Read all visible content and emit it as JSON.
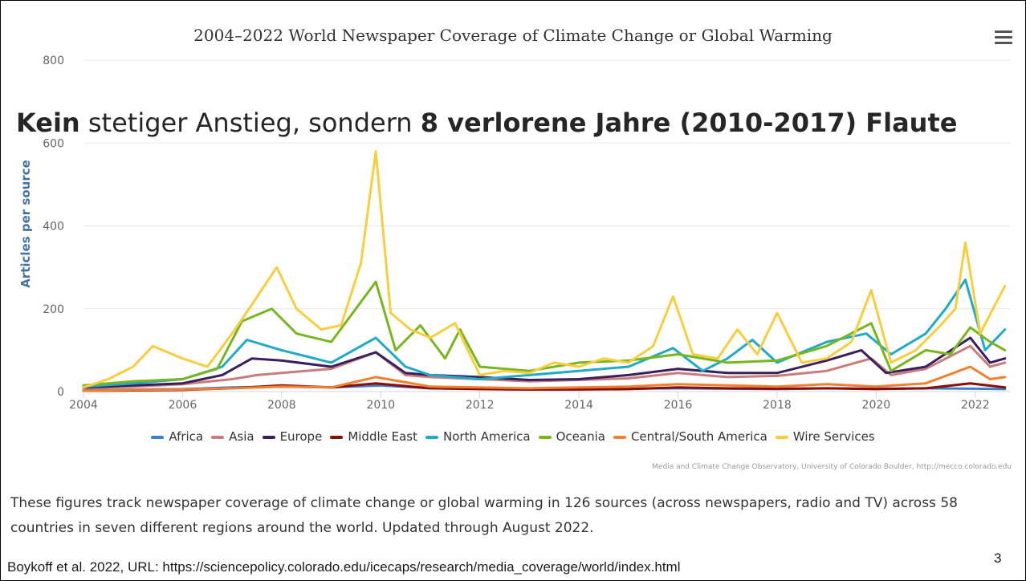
{
  "slide": {
    "heading_bold_1": "Kein",
    "heading_normal": " stetiger Anstieg, sondern ",
    "heading_bold_2": "8 verlorene Jahre (2010-2017) Flaute",
    "description": "These figures track newspaper coverage of climate change or global warming in 126 sources (across newspapers, radio and TV) across 58 countries in seven different regions around the world. Updated through August 2022.",
    "source": "Boykoff et al. 2022, URL: https://sciencepolicy.colorado.edu/icecaps/research/media_coverage/world/index.html",
    "page_number": "3"
  },
  "chart_data": {
    "type": "line",
    "title": "2004–2022 World Newspaper Coverage of Climate Change or Global Warming",
    "xlabel": "",
    "ylabel": "Articles per source",
    "xlim": [
      2004,
      2022.7
    ],
    "ylim": [
      0,
      800
    ],
    "y_ticks": [
      0,
      200,
      400,
      600,
      800
    ],
    "x_ticks": [
      2004,
      2006,
      2008,
      2010,
      2012,
      2014,
      2016,
      2018,
      2020,
      2022
    ],
    "grid": true,
    "legend_position": "bottom",
    "credits": "Media and Climate Change Observatory, University of Colorado Boulder, http://mecco.colorado.edu",
    "series": [
      {
        "name": "Africa",
        "color": "#3a7fd5",
        "x": [
          2004,
          2005,
          2006,
          2007,
          2008,
          2009,
          2010,
          2011,
          2012,
          2013,
          2014,
          2015,
          2016,
          2017,
          2018,
          2019,
          2020,
          2021,
          2022,
          2022.6
        ],
        "y": [
          3,
          5,
          6,
          10,
          12,
          10,
          15,
          8,
          7,
          5,
          6,
          7,
          8,
          7,
          6,
          8,
          7,
          8,
          7,
          6
        ]
      },
      {
        "name": "Asia",
        "color": "#c87d7d",
        "x": [
          2004,
          2005,
          2006,
          2007,
          2007.5,
          2008,
          2009,
          2009.9,
          2010.5,
          2011,
          2012,
          2013,
          2014,
          2015,
          2016,
          2017,
          2018,
          2019,
          2019.9,
          2020.3,
          2021,
          2021.9,
          2022.3,
          2022.6
        ],
        "y": [
          8,
          12,
          18,
          30,
          40,
          45,
          55,
          95,
          40,
          35,
          30,
          25,
          28,
          32,
          45,
          35,
          38,
          50,
          80,
          40,
          55,
          110,
          60,
          70
        ]
      },
      {
        "name": "Europe",
        "color": "#3a1f5c",
        "x": [
          2004,
          2005,
          2006,
          2006.8,
          2007.4,
          2008,
          2009,
          2009.9,
          2010.5,
          2011,
          2012,
          2013,
          2014,
          2015,
          2016,
          2017,
          2018,
          2019,
          2019.7,
          2020.2,
          2021,
          2021.9,
          2022.3,
          2022.6
        ],
        "y": [
          10,
          15,
          20,
          40,
          80,
          75,
          60,
          95,
          45,
          40,
          35,
          28,
          30,
          40,
          55,
          45,
          45,
          75,
          100,
          45,
          60,
          130,
          70,
          80
        ]
      },
      {
        "name": "Middle East",
        "color": "#8b0e04",
        "x": [
          2004,
          2005,
          2006,
          2007,
          2008,
          2009,
          2009.9,
          2011,
          2012,
          2013,
          2014,
          2015,
          2016,
          2017,
          2018,
          2019,
          2020,
          2021,
          2021.9,
          2022.6
        ],
        "y": [
          2,
          3,
          4,
          8,
          15,
          10,
          20,
          8,
          6,
          5,
          5,
          6,
          10,
          8,
          7,
          8,
          6,
          8,
          20,
          10
        ]
      },
      {
        "name": "North America",
        "color": "#1eaac8",
        "x": [
          2004,
          2005,
          2006,
          2006.8,
          2007.3,
          2008,
          2009,
          2009.9,
          2010.5,
          2011,
          2012,
          2013,
          2014,
          2015,
          2015.9,
          2016.5,
          2017,
          2017.5,
          2018,
          2019,
          2019.8,
          2020.3,
          2021,
          2021.4,
          2021.8,
          2022.2,
          2022.6
        ],
        "y": [
          12,
          20,
          30,
          60,
          125,
          100,
          70,
          130,
          60,
          40,
          30,
          40,
          50,
          60,
          105,
          50,
          80,
          125,
          70,
          120,
          140,
          90,
          140,
          200,
          270,
          100,
          150
        ]
      },
      {
        "name": "Oceania",
        "color": "#78b61e",
        "x": [
          2004,
          2005,
          2006,
          2006.7,
          2007.2,
          2007.8,
          2008.3,
          2009,
          2009.9,
          2010.3,
          2010.8,
          2011.3,
          2011.6,
          2012,
          2013,
          2014,
          2015,
          2016,
          2017,
          2018,
          2019,
          2019.9,
          2020.3,
          2021,
          2021.5,
          2021.9,
          2022.3,
          2022.6
        ],
        "y": [
          15,
          25,
          30,
          55,
          170,
          200,
          140,
          120,
          265,
          100,
          160,
          80,
          150,
          60,
          50,
          70,
          75,
          90,
          70,
          75,
          110,
          165,
          50,
          100,
          90,
          155,
          120,
          100
        ]
      },
      {
        "name": "Central/South America",
        "color": "#f07f30",
        "x": [
          2004,
          2005,
          2006,
          2007,
          2008,
          2009,
          2009.9,
          2011,
          2012,
          2013,
          2014,
          2015,
          2016,
          2017,
          2018,
          2019,
          2020,
          2021,
          2021.9,
          2022.3,
          2022.6
        ],
        "y": [
          2,
          4,
          5,
          8,
          12,
          10,
          35,
          12,
          10,
          8,
          10,
          12,
          18,
          15,
          12,
          18,
          12,
          20,
          60,
          30,
          35
        ]
      },
      {
        "name": "Wire Services",
        "color": "#f8cd3e",
        "x": [
          2004,
          2004.5,
          2005,
          2005.4,
          2006,
          2006.5,
          2007,
          2007.4,
          2007.9,
          2008.3,
          2008.8,
          2009.2,
          2009.6,
          2009.9,
          2010.2,
          2010.6,
          2011,
          2011.5,
          2012,
          2012.5,
          2013,
          2013.5,
          2014,
          2014.5,
          2015,
          2015.5,
          2015.9,
          2016.3,
          2016.8,
          2017.2,
          2017.6,
          2018,
          2018.5,
          2019,
          2019.5,
          2019.9,
          2020.3,
          2020.8,
          2021.3,
          2021.6,
          2021.8,
          2022.1,
          2022.4,
          2022.6
        ],
        "y": [
          10,
          30,
          60,
          110,
          80,
          60,
          140,
          210,
          300,
          200,
          150,
          160,
          310,
          580,
          190,
          150,
          130,
          165,
          40,
          50,
          45,
          70,
          60,
          80,
          70,
          110,
          230,
          90,
          80,
          150,
          90,
          190,
          70,
          80,
          120,
          245,
          70,
          100,
          160,
          200,
          360,
          140,
          210,
          255
        ]
      }
    ]
  }
}
